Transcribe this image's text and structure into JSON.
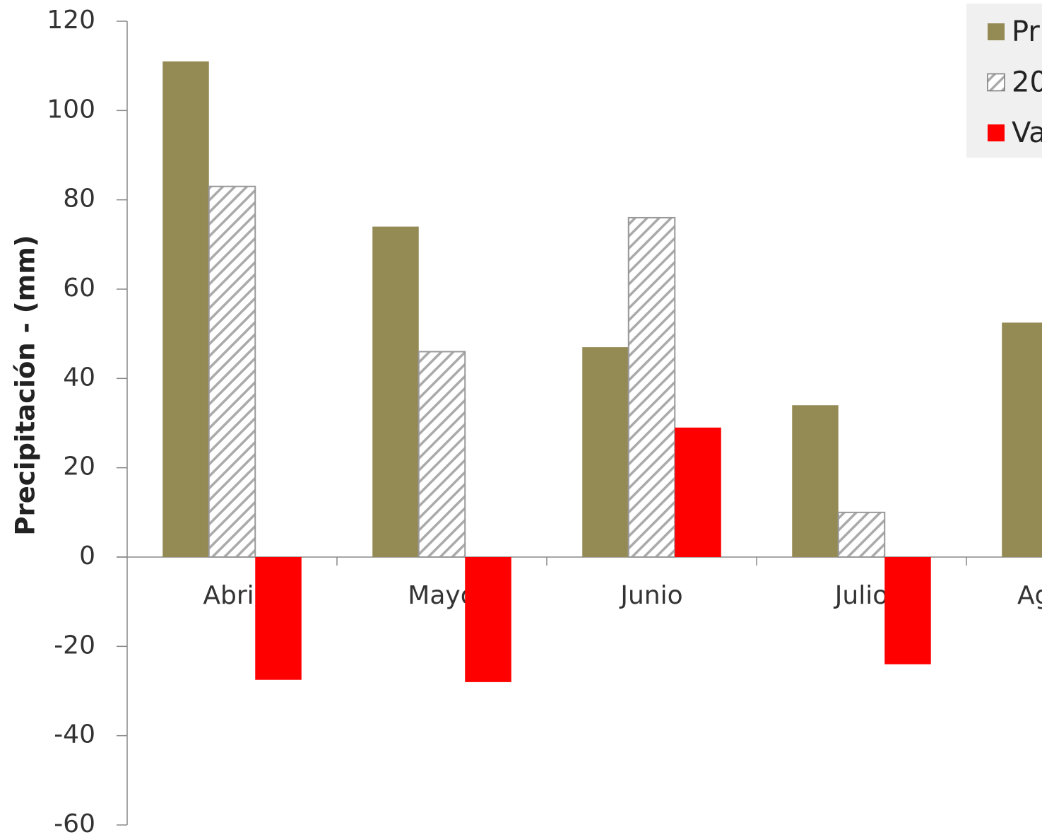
{
  "chart_data": {
    "type": "bar",
    "y_label": "Precipitación  - (mm)",
    "categories": [
      "Abril",
      "Mayo",
      "Junio",
      "Julio",
      "Ag"
    ],
    "series": [
      {
        "name": "Pr",
        "color": "#948a54",
        "values": [
          111,
          74,
          47,
          34,
          52.5
        ]
      },
      {
        "name": "20",
        "color": "#ffffff",
        "pattern": "hatch",
        "values": [
          83,
          46,
          76,
          10,
          null
        ]
      },
      {
        "name": "Va",
        "color": "#ff0000",
        "values": [
          -27.5,
          -28,
          29,
          -24,
          null
        ]
      }
    ],
    "ylim": [
      -60,
      120
    ],
    "yticks": [
      -60,
      -40,
      -20,
      0,
      20,
      40,
      60,
      80,
      100,
      120
    ],
    "legend": "top-right"
  }
}
